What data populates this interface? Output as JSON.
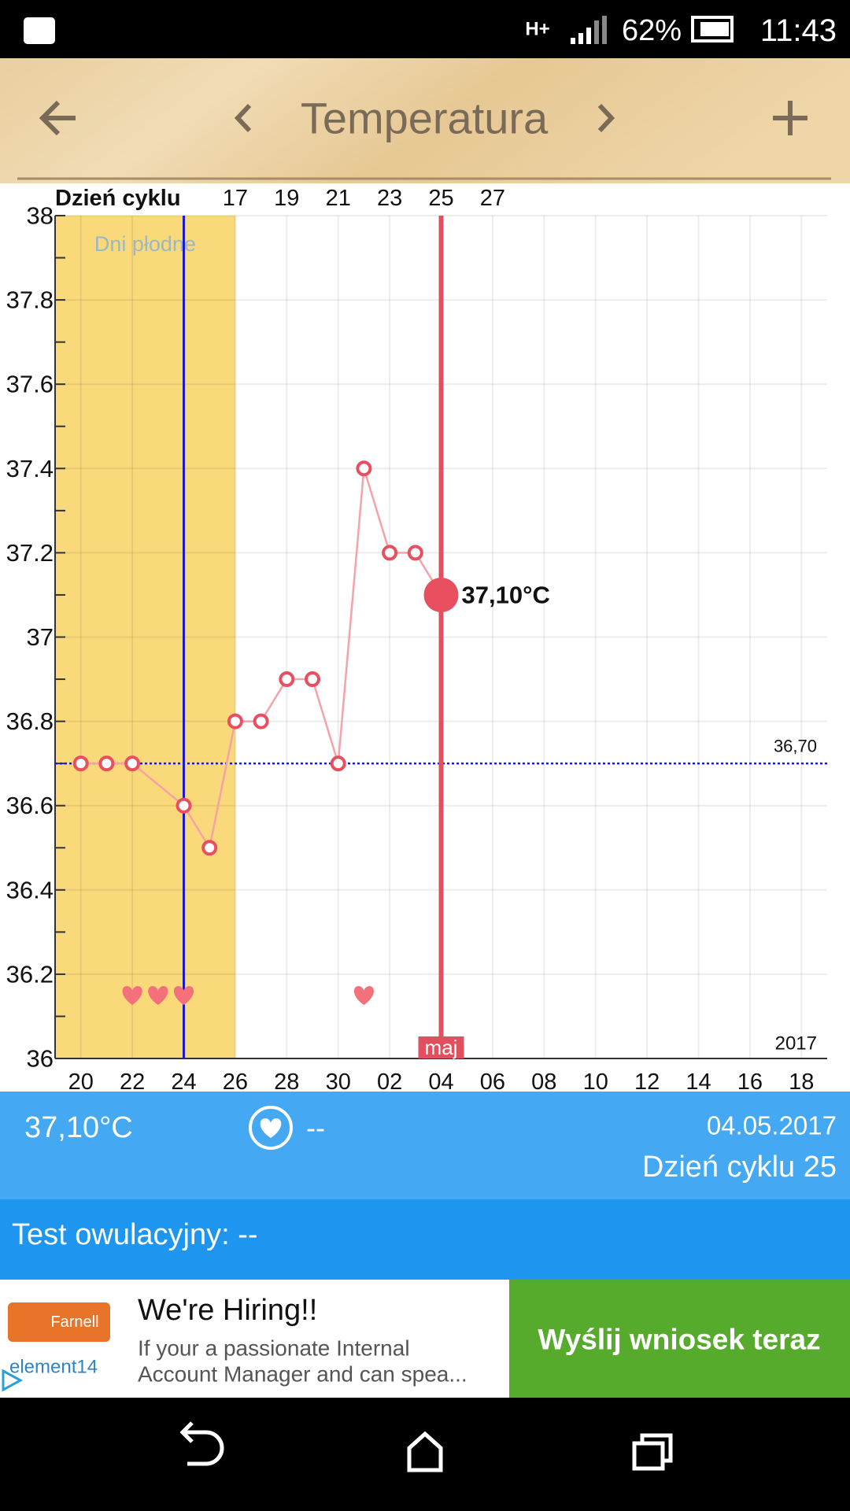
{
  "status_bar": {
    "network": "H+",
    "battery": "62%",
    "time": "11:43"
  },
  "header": {
    "title": "Temperatura"
  },
  "chart_data": {
    "type": "line",
    "top_axis_label": "Dzień cyklu",
    "fertile_label": "Dni płodne",
    "year_label": "2017",
    "month_label": "maj",
    "x": [
      1,
      2,
      3,
      5,
      6,
      7,
      8,
      9,
      10,
      11,
      12,
      13,
      14,
      15
    ],
    "series": [
      {
        "color": "#f5a3a8",
        "marker_color": "#e9505f",
        "values": [
          36.7,
          36.7,
          36.7,
          36.6,
          36.5,
          36.8,
          36.8,
          36.9,
          36.9,
          36.7,
          37.4,
          37.2,
          37.2,
          37.1
        ],
        "value_labels": [
          null,
          null,
          null,
          null,
          null,
          null,
          null,
          null,
          null,
          null,
          null,
          null,
          null,
          "37,10°C"
        ]
      }
    ],
    "cover_line": {
      "value": 36.7,
      "label": "36,70",
      "color": "#1a1ad0"
    },
    "fertile_range": [
      0,
      7
    ],
    "fertile_color": "#fad97a",
    "ovulation_x": 5,
    "today_x": 15,
    "today_color": "#e0505f",
    "hearts_x": [
      3,
      4,
      5,
      12
    ],
    "xlim": [
      0,
      30
    ],
    "ylim": [
      36,
      38
    ],
    "yticks": [
      36,
      36.2,
      36.4,
      36.6,
      36.8,
      37,
      37.2,
      37.4,
      37.6,
      37.8,
      38
    ],
    "yminorticks": [
      36.1,
      36.3,
      36.5,
      36.7,
      36.9,
      37.1,
      37.3,
      37.5,
      37.7,
      37.9
    ],
    "xticks": [
      {
        "value": 1,
        "label": "20"
      },
      {
        "value": 3,
        "label": "22"
      },
      {
        "value": 5,
        "label": "24"
      },
      {
        "value": 7,
        "label": "26"
      },
      {
        "value": 9,
        "label": "28"
      },
      {
        "value": 11,
        "label": "30"
      },
      {
        "value": 13,
        "label": "02"
      },
      {
        "value": 15,
        "label": "04"
      },
      {
        "value": 17,
        "label": "06"
      },
      {
        "value": 19,
        "label": "08"
      },
      {
        "value": 21,
        "label": "10"
      },
      {
        "value": 23,
        "label": "12"
      },
      {
        "value": 25,
        "label": "14"
      },
      {
        "value": 27,
        "label": "16"
      },
      {
        "value": 29,
        "label": "18"
      }
    ],
    "x2ticks": [
      {
        "value": 7,
        "label": "17"
      },
      {
        "value": 9,
        "label": "19"
      },
      {
        "value": 11,
        "label": "21"
      },
      {
        "value": 13,
        "label": "23"
      },
      {
        "value": 15,
        "label": "25"
      },
      {
        "value": 17,
        "label": "27"
      }
    ],
    "grid": true
  },
  "info": {
    "temperature": "37,10°C",
    "intercourse": "--",
    "date": "04.05.2017",
    "cycle_day": "Dzień cyklu 25",
    "ovulation_test": "Test owulacyjny: --"
  },
  "ad": {
    "brand": "Farnell",
    "brand2": "element14",
    "title": "We're Hiring!!",
    "text_line1": "If your a passionate Internal",
    "text_line2": "Account Manager and can spea...",
    "button": "Wyślij wniosek teraz"
  }
}
